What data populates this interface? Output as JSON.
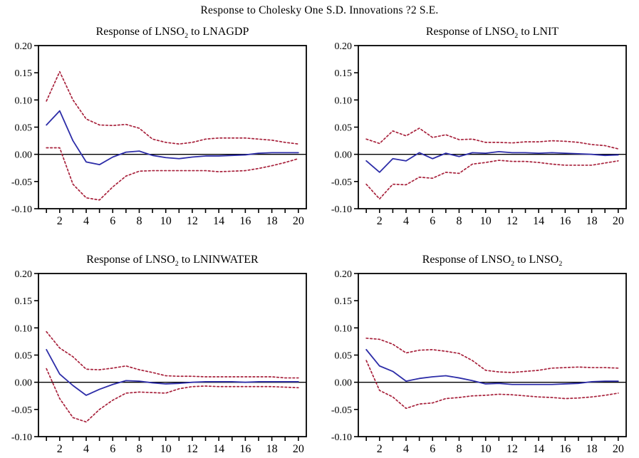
{
  "figure": {
    "title": "Response to Cholesky One S.D. Innovations ?2 S.E."
  },
  "colors": {
    "response_line": "#2d2da8",
    "band_line": "#a8223c",
    "axis": "#000000",
    "background": "#ffffff"
  },
  "axis": {
    "ylim": [
      -0.1,
      0.2
    ],
    "xlim": [
      1,
      20
    ],
    "y_ticks": [
      {
        "label": "0.20",
        "value": 0.2
      },
      {
        "label": "0.15",
        "value": 0.15
      },
      {
        "label": "0.10",
        "value": 0.1
      },
      {
        "label": "0.05",
        "value": 0.05
      },
      {
        "label": "0.00",
        "value": 0.0
      },
      {
        "label": "-0.05",
        "value": -0.05
      },
      {
        "label": "-0.10",
        "value": -0.1
      }
    ],
    "x_minor_ticks": [
      1,
      2,
      3,
      4,
      5,
      6,
      7,
      8,
      9,
      10,
      11,
      12,
      13,
      14,
      15,
      16,
      17,
      18,
      19,
      20
    ],
    "x_tick_labels": [
      2,
      4,
      6,
      8,
      10,
      12,
      14,
      16,
      18,
      20
    ],
    "grid": false,
    "legend": "none"
  },
  "chart_data": [
    {
      "type": "line",
      "title_text": "Response of LNSO2 to LNAGDP",
      "title_parts": {
        "prefix": "Response of ",
        "var1": "LNSO",
        "var1_sub": "2",
        "mid": " to ",
        "var2": "LNAGDP",
        "var2_sub": ""
      },
      "x": [
        1,
        2,
        3,
        4,
        5,
        6,
        7,
        8,
        9,
        10,
        11,
        12,
        13,
        14,
        15,
        16,
        17,
        18,
        19,
        20
      ],
      "ylim": [
        -0.1,
        0.2
      ],
      "series": [
        {
          "name": "response",
          "style": "solid",
          "values": [
            0.054,
            0.08,
            0.025,
            -0.014,
            -0.019,
            -0.005,
            0.004,
            0.006,
            -0.002,
            -0.006,
            -0.008,
            -0.005,
            -0.003,
            -0.003,
            -0.002,
            -0.001,
            0.002,
            0.003,
            0.003,
            0.003
          ]
        },
        {
          "name": "upper_2se",
          "style": "dashed",
          "values": [
            0.098,
            0.152,
            0.1,
            0.065,
            0.054,
            0.053,
            0.055,
            0.048,
            0.028,
            0.022,
            0.019,
            0.022,
            0.028,
            0.03,
            0.03,
            0.03,
            0.028,
            0.026,
            0.022,
            0.019
          ]
        },
        {
          "name": "lower_2se",
          "style": "dashed",
          "values": [
            0.012,
            0.012,
            -0.055,
            -0.08,
            -0.084,
            -0.06,
            -0.04,
            -0.031,
            -0.03,
            -0.03,
            -0.03,
            -0.03,
            -0.03,
            -0.032,
            -0.031,
            -0.03,
            -0.026,
            -0.021,
            -0.015,
            -0.008
          ]
        }
      ]
    },
    {
      "type": "line",
      "title_text": "Response of LNSO2 to LNIT",
      "title_parts": {
        "prefix": "Response of ",
        "var1": "LNSO",
        "var1_sub": "2",
        "mid": " to ",
        "var2": "LNIT",
        "var2_sub": ""
      },
      "x": [
        1,
        2,
        3,
        4,
        5,
        6,
        7,
        8,
        9,
        10,
        11,
        12,
        13,
        14,
        15,
        16,
        17,
        18,
        19,
        20
      ],
      "ylim": [
        -0.1,
        0.2
      ],
      "series": [
        {
          "name": "response",
          "style": "solid",
          "values": [
            -0.012,
            -0.033,
            -0.008,
            -0.012,
            0.003,
            -0.008,
            0.002,
            -0.004,
            0.003,
            0.002,
            0.005,
            0.003,
            0.003,
            0.002,
            0.003,
            0.002,
            0.001,
            0.0,
            -0.002,
            -0.001
          ]
        },
        {
          "name": "upper_2se",
          "style": "dashed",
          "values": [
            0.028,
            0.02,
            0.043,
            0.034,
            0.048,
            0.031,
            0.036,
            0.027,
            0.028,
            0.022,
            0.022,
            0.021,
            0.023,
            0.023,
            0.025,
            0.024,
            0.022,
            0.018,
            0.016,
            0.01
          ]
        },
        {
          "name": "lower_2se",
          "style": "dashed",
          "values": [
            -0.055,
            -0.082,
            -0.055,
            -0.056,
            -0.042,
            -0.044,
            -0.033,
            -0.035,
            -0.018,
            -0.015,
            -0.011,
            -0.013,
            -0.013,
            -0.015,
            -0.018,
            -0.02,
            -0.02,
            -0.02,
            -0.016,
            -0.012
          ]
        }
      ]
    },
    {
      "type": "line",
      "title_text": "Response of LNSO2 to LNINWATER",
      "title_parts": {
        "prefix": "Response of ",
        "var1": "LNSO",
        "var1_sub": "2",
        "mid": " to ",
        "var2": "LNINWATER",
        "var2_sub": ""
      },
      "x": [
        1,
        2,
        3,
        4,
        5,
        6,
        7,
        8,
        9,
        10,
        11,
        12,
        13,
        14,
        15,
        16,
        17,
        18,
        19,
        20
      ],
      "ylim": [
        -0.1,
        0.2
      ],
      "series": [
        {
          "name": "response",
          "style": "solid",
          "values": [
            0.06,
            0.015,
            -0.006,
            -0.024,
            -0.013,
            -0.004,
            0.003,
            0.002,
            -0.001,
            -0.003,
            -0.002,
            0.0,
            0.001,
            0.001,
            0.001,
            0.0,
            0.001,
            0.001,
            0.001,
            0.001
          ]
        },
        {
          "name": "upper_2se",
          "style": "dashed",
          "values": [
            0.093,
            0.063,
            0.047,
            0.024,
            0.023,
            0.026,
            0.03,
            0.023,
            0.018,
            0.012,
            0.011,
            0.011,
            0.01,
            0.01,
            0.01,
            0.01,
            0.01,
            0.01,
            0.008,
            0.008
          ]
        },
        {
          "name": "lower_2se",
          "style": "dashed",
          "values": [
            0.025,
            -0.03,
            -0.065,
            -0.073,
            -0.05,
            -0.033,
            -0.02,
            -0.018,
            -0.019,
            -0.02,
            -0.012,
            -0.008,
            -0.007,
            -0.008,
            -0.008,
            -0.008,
            -0.008,
            -0.008,
            -0.009,
            -0.01
          ]
        }
      ]
    },
    {
      "type": "line",
      "title_text": "Response of LNSO2 to LNSO2",
      "title_parts": {
        "prefix": "Response of ",
        "var1": "LNSO",
        "var1_sub": "2",
        "mid": " to ",
        "var2": "LNSO",
        "var2_sub": "2"
      },
      "x": [
        1,
        2,
        3,
        4,
        5,
        6,
        7,
        8,
        9,
        10,
        11,
        12,
        13,
        14,
        15,
        16,
        17,
        18,
        19,
        20
      ],
      "ylim": [
        -0.1,
        0.2
      ],
      "series": [
        {
          "name": "response",
          "style": "solid",
          "values": [
            0.06,
            0.03,
            0.02,
            0.002,
            0.007,
            0.01,
            0.012,
            0.008,
            0.003,
            -0.003,
            -0.002,
            -0.004,
            -0.004,
            -0.004,
            -0.004,
            -0.003,
            -0.002,
            0.001,
            0.002,
            0.002
          ]
        },
        {
          "name": "upper_2se",
          "style": "dashed",
          "values": [
            0.081,
            0.079,
            0.07,
            0.054,
            0.059,
            0.06,
            0.057,
            0.053,
            0.04,
            0.022,
            0.019,
            0.018,
            0.02,
            0.022,
            0.026,
            0.027,
            0.028,
            0.027,
            0.027,
            0.026
          ]
        },
        {
          "name": "lower_2se",
          "style": "dashed",
          "values": [
            0.04,
            -0.015,
            -0.027,
            -0.048,
            -0.04,
            -0.038,
            -0.03,
            -0.028,
            -0.025,
            -0.024,
            -0.022,
            -0.023,
            -0.025,
            -0.027,
            -0.028,
            -0.03,
            -0.029,
            -0.027,
            -0.024,
            -0.02
          ]
        }
      ]
    }
  ]
}
